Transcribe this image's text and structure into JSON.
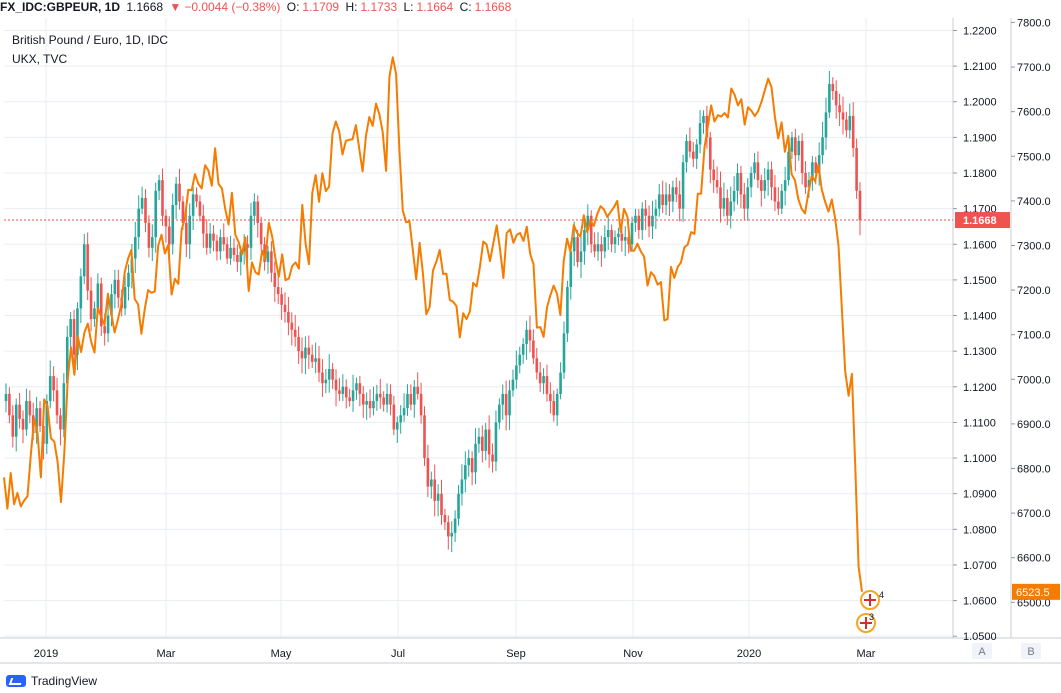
{
  "header": {
    "symbol": "FX_IDC:GBPEUR, 1D",
    "last": "1.1668",
    "change_arrow": "▼",
    "change": "−0.0044 (−0.38%)",
    "open_label": "O:",
    "open": "1.1709",
    "high_label": "H:",
    "high": "1.1733",
    "low_label": "L:",
    "low": "1.1664",
    "close_label": "C:",
    "close": "1.1668"
  },
  "legend": {
    "main": "British Pound / Euro, 1D, IDC",
    "compare": "UKX, TVC"
  },
  "footer": {
    "brand": "TradingView"
  },
  "scale_buttons": {
    "a": "A",
    "b": "B"
  },
  "colors": {
    "up": "#26a69a",
    "down": "#ef5350",
    "compare": "#f57c00",
    "grid": "#e9edf3"
  },
  "chart_data": {
    "type": "line",
    "x_labels": [
      "2019",
      "Mar",
      "May",
      "Jul",
      "Sep",
      "Nov",
      "2020",
      "Mar"
    ],
    "y_left_ticks": [
      "1.2200",
      "1.2100",
      "1.2000",
      "1.1900",
      "1.1800",
      "1.1700",
      "1.1600",
      "1.1500",
      "1.1400",
      "1.1300",
      "1.1200",
      "1.1100",
      "1.1000",
      "1.0900",
      "1.0800",
      "1.0700",
      "1.0600",
      "1.0500"
    ],
    "y_right_ticks": [
      "7800.0",
      "7700.0",
      "7600.0",
      "7500.0",
      "7400.0",
      "7300.0",
      "7200.0",
      "7100.0",
      "7000.0",
      "6900.0",
      "6800.0",
      "6700.0",
      "6600.0",
      "6500.0"
    ],
    "left_ylim": [
      1.0495,
      1.2235
    ],
    "right_ylim": [
      6420,
      7810
    ],
    "current_price_label": "1.1668",
    "current_price": 1.1668,
    "compare_last_label": "6523.5",
    "compare_last": 6523.5,
    "markers": [
      {
        "label": "4"
      },
      {
        "label": "3"
      }
    ],
    "series": [
      {
        "name": "GBPEUR",
        "style": "candles",
        "closes": [
          1.118,
          1.112,
          1.106,
          1.115,
          1.111,
          1.108,
          1.116,
          1.112,
          1.107,
          1.114,
          1.109,
          1.104,
          1.116,
          1.123,
          1.119,
          1.112,
          1.108,
          1.121,
          1.134,
          1.139,
          1.129,
          1.142,
          1.151,
          1.16,
          1.147,
          1.139,
          1.142,
          1.149,
          1.137,
          1.135,
          1.14,
          1.146,
          1.15,
          1.145,
          1.142,
          1.148,
          1.152,
          1.156,
          1.162,
          1.17,
          1.173,
          1.166,
          1.159,
          1.162,
          1.175,
          1.178,
          1.168,
          1.165,
          1.16,
          1.171,
          1.177,
          1.172,
          1.166,
          1.16,
          1.168,
          1.174,
          1.172,
          1.168,
          1.163,
          1.159,
          1.163,
          1.161,
          1.158,
          1.162,
          1.16,
          1.156,
          1.159,
          1.157,
          1.155,
          1.158,
          1.16,
          1.159,
          1.168,
          1.172,
          1.166,
          1.16,
          1.155,
          1.158,
          1.152,
          1.148,
          1.146,
          1.143,
          1.141,
          1.138,
          1.136,
          1.134,
          1.13,
          1.128,
          1.131,
          1.129,
          1.127,
          1.128,
          1.124,
          1.121,
          1.122,
          1.125,
          1.122,
          1.119,
          1.118,
          1.12,
          1.117,
          1.116,
          1.119,
          1.121,
          1.118,
          1.115,
          1.116,
          1.114,
          1.116,
          1.118,
          1.117,
          1.115,
          1.118,
          1.115,
          1.108,
          1.11,
          1.112,
          1.114,
          1.118,
          1.115,
          1.12,
          1.118,
          1.112,
          1.1,
          1.092,
          1.094,
          1.088,
          1.09,
          1.084,
          1.082,
          1.078,
          1.079,
          1.083,
          1.09,
          1.094,
          1.098,
          1.1,
          1.096,
          1.104,
          1.106,
          1.102,
          1.108,
          1.101,
          1.099,
          1.11,
          1.115,
          1.118,
          1.112,
          1.119,
          1.122,
          1.126,
          1.129,
          1.132,
          1.136,
          1.133,
          1.128,
          1.124,
          1.121,
          1.123,
          1.118,
          1.116,
          1.112,
          1.118,
          1.124,
          1.135,
          1.148,
          1.158,
          1.162,
          1.155,
          1.158,
          1.164,
          1.168,
          1.16,
          1.158,
          1.16,
          1.158,
          1.162,
          1.164,
          1.16,
          1.162,
          1.163,
          1.161,
          1.162,
          1.16,
          1.166,
          1.168,
          1.164,
          1.17,
          1.168,
          1.165,
          1.168,
          1.17,
          1.174,
          1.171,
          1.174,
          1.172,
          1.176,
          1.174,
          1.17,
          1.183,
          1.189,
          1.186,
          1.184,
          1.188,
          1.194,
          1.196,
          1.19,
          1.181,
          1.178,
          1.176,
          1.17,
          1.173,
          1.168,
          1.172,
          1.175,
          1.18,
          1.174,
          1.17,
          1.176,
          1.18,
          1.183,
          1.178,
          1.175,
          1.178,
          1.181,
          1.176,
          1.172,
          1.17,
          1.175,
          1.178,
          1.186,
          1.19,
          1.185,
          1.189,
          1.18,
          1.176,
          1.178,
          1.183,
          1.18,
          1.185,
          1.19,
          1.197,
          1.205,
          1.203,
          1.199,
          1.197,
          1.195,
          1.192,
          1.196,
          1.187,
          1.175,
          1.1668
        ]
      },
      {
        "name": "UKX",
        "style": "line",
        "values": [
          6780,
          6710,
          6790,
          6720,
          6745,
          6715,
          6728,
          6738,
          6830,
          6912,
          6880,
          6780,
          6955,
          6940,
          6868,
          6860,
          6815,
          6725,
          6835,
          6998,
          7072,
          7010,
          7097,
          7061,
          7105,
          7125,
          7085,
          7060,
          7160,
          7140,
          7122,
          7192,
          7148,
          7105,
          7135,
          7167,
          7240,
          7270,
          7290,
          7180,
          7168,
          7102,
          7158,
          7200,
          7194,
          7197,
          7300,
          7324,
          7282,
          7301,
          7190,
          7225,
          7214,
          7335,
          7362,
          7425,
          7424,
          7460,
          7438,
          7428,
          7480,
          7468,
          7434,
          7518,
          7438,
          7428,
          7382,
          7347,
          7418,
          7324,
          7308,
          7280,
          7318,
          7198,
          7262,
          7240,
          7235,
          7288,
          7270,
          7351,
          7321,
          7270,
          7230,
          7280,
          7222,
          7226,
          7254,
          7262,
          7248,
          7391,
          7304,
          7258,
          7418,
          7458,
          7398,
          7462,
          7422,
          7432,
          7551,
          7578,
          7556,
          7504,
          7535,
          7537,
          7538,
          7570,
          7516,
          7466,
          7546,
          7588,
          7568,
          7618,
          7594,
          7554,
          7467,
          7678,
          7722,
          7684,
          7510,
          7378,
          7352,
          7354,
          7288,
          7224,
          7306,
          7238,
          7146,
          7162,
          7244,
          7264,
          7290,
          7236,
          7237,
          7178,
          7174,
          7164,
          7094,
          7148,
          7135,
          7152,
          7216,
          7208,
          7252,
          7309,
          7302,
          7265,
          7305,
          7345,
          7292,
          7227,
          7328,
          7336,
          7306,
          7324,
          7328,
          7310,
          7342,
          7281,
          7258,
          7116,
          7117,
          7095,
          7161,
          7188,
          7210,
          7192,
          7144,
          7265,
          7315,
          7286,
          7346,
          7328,
          7320,
          7368,
          7330,
          7356,
          7344,
          7370,
          7388,
          7381,
          7364,
          7375,
          7386,
          7400,
          7330,
          7382,
          7365,
          7288,
          7288,
          7304,
          7287,
          7275,
          7210,
          7240,
          7232,
          7212,
          7218,
          7132,
          7135,
          7252,
          7227,
          7252,
          7262,
          7296,
          7302,
          7330,
          7326,
          7416,
          7416,
          7520,
          7566,
          7614,
          7578,
          7592,
          7589,
          7597,
          7587,
          7652,
          7638,
          7614,
          7628,
          7571,
          7610,
          7602,
          7590,
          7601,
          7622,
          7648,
          7674,
          7655,
          7589,
          7540,
          7576,
          7510,
          7546,
          7460,
          7446,
          7404,
          7382,
          7372,
          7418,
          7456,
          7444,
          7481,
          7425,
          7398,
          7376,
          7403,
          7360,
          7300,
          7157,
          7018,
          6963,
          7012,
          6802,
          6580,
          6523.5
        ]
      }
    ]
  }
}
